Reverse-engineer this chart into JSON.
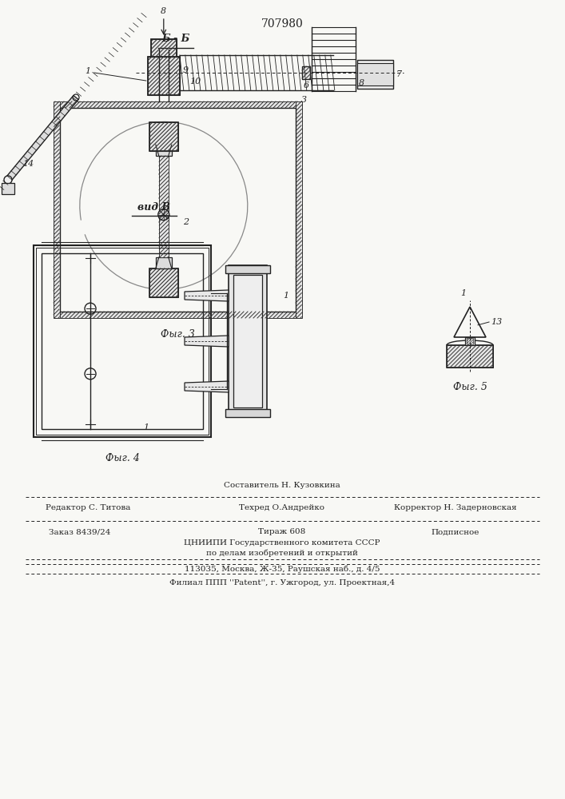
{
  "patent_number": "707980",
  "fig3_label": "Фыг. 3",
  "fig3_section": "Б - Б",
  "fig4_label": "Фыг. 4",
  "fig4_view": "вид В",
  "fig5_label": "Фыг. 5",
  "footer_line1": "Составитель Н. Кузовкина",
  "footer_editor": "Редактор С. Титова",
  "footer_tekhred": "Техред О.Андрейко",
  "footer_korrektor": "Корректор Н. Задерновская",
  "footer_zakaz": "Заказ 8439/24",
  "footer_tirazh": "Тираж 608",
  "footer_podpisnoe": "Подписное",
  "footer_tsniipи": "ЦНИИПИ Государственного комитета СССР",
  "footer_podelam": "по делам изобретений и открытий",
  "footer_moskva": "113035, Москва, Ж-35, Раушская наб., д. 4/5",
  "footer_filial": "Филиал ППП ''Patent'', г. Ужгород, ул. Проектная,4",
  "bg_color": "#f8f8f5",
  "line_color": "#222222"
}
